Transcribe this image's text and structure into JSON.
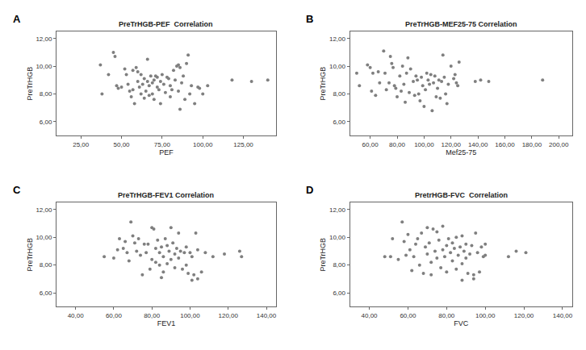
{
  "chart_data": [
    {
      "type": "scatter",
      "panel": "A",
      "title": "PreTrHGB-PEF  Correlation",
      "x_label": "PEF",
      "y_label": "PreTrHGB",
      "color": "#7f7f7f",
      "marker": "circle",
      "grid": false,
      "x": [
        37,
        38,
        42,
        45,
        46,
        47,
        48,
        50,
        52,
        53,
        54,
        55,
        56,
        57,
        57,
        58,
        59,
        60,
        60,
        61,
        62,
        62,
        63,
        64,
        64,
        65,
        66,
        66,
        67,
        67,
        68,
        69,
        69,
        70,
        70,
        71,
        72,
        72,
        73,
        74,
        74,
        75,
        76,
        77,
        78,
        79,
        80,
        80,
        81,
        82,
        83,
        84,
        85,
        85,
        86,
        86,
        87,
        88,
        89,
        90,
        91,
        92,
        93,
        95,
        97,
        98,
        100,
        103,
        118,
        130,
        140
      ],
      "y": [
        10.1,
        8.0,
        9.4,
        11.0,
        10.7,
        8.6,
        8.4,
        8.5,
        9.8,
        9.4,
        8.7,
        8.2,
        7.8,
        9.7,
        8.3,
        7.3,
        9.9,
        9.6,
        8.9,
        8.5,
        9.4,
        8.0,
        8.7,
        7.7,
        9.1,
        8.2,
        10.5,
        8.9,
        8.6,
        7.9,
        9.3,
        8.8,
        8.0,
        9.0,
        7.6,
        9.3,
        8.5,
        9.2,
        8.3,
        8.9,
        7.3,
        9.4,
        8.7,
        8.1,
        9.2,
        9.1,
        8.6,
        7.8,
        8.3,
        9.7,
        9.0,
        10.0,
        10.1,
        8.2,
        9.9,
        6.9,
        8.8,
        9.3,
        7.6,
        10.2,
        10.8,
        8.0,
        8.6,
        7.3,
        8.5,
        8.4,
        8.0,
        8.6,
        9.0,
        8.9,
        9.0
      ],
      "xlim": [
        10,
        145
      ],
      "xticks": [
        {
          "value": 25,
          "label": "25,00"
        },
        {
          "value": 50,
          "label": "50,00"
        },
        {
          "value": 75,
          "label": "75,00"
        },
        {
          "value": 100,
          "label": "100,00"
        },
        {
          "value": 125,
          "label": "125,00"
        }
      ],
      "ylim": [
        5.0,
        12.5
      ],
      "yticks": [
        {
          "value": 6,
          "label": "6,00"
        },
        {
          "value": 8,
          "label": "8,00"
        },
        {
          "value": 10,
          "label": "10,00"
        },
        {
          "value": 12,
          "label": "12,00"
        }
      ]
    },
    {
      "type": "scatter",
      "panel": "B",
      "title": "PreTrHGB-MEF25-75 Correlation",
      "x_label": "Mef25-75",
      "y_label": "PreTrHGB",
      "color": "#7f7f7f",
      "marker": "circle",
      "grid": false,
      "x": [
        50,
        52,
        58,
        60,
        61,
        62,
        64,
        66,
        67,
        70,
        71,
        72,
        74,
        75,
        76,
        77,
        78,
        79,
        80,
        82,
        83,
        84,
        85,
        86,
        87,
        88,
        89,
        90,
        92,
        93,
        94,
        95,
        96,
        97,
        98,
        99,
        100,
        101,
        102,
        103,
        104,
        105,
        106,
        107,
        108,
        109,
        110,
        111,
        112,
        113,
        114,
        115,
        116,
        117,
        118,
        120,
        122,
        123,
        124,
        125,
        126,
        138,
        142,
        148,
        188
      ],
      "y": [
        9.5,
        8.6,
        10.1,
        9.9,
        8.2,
        9.5,
        7.9,
        9.6,
        8.8,
        11.1,
        9.5,
        8.3,
        8.8,
        10.7,
        10.2,
        9.9,
        8.6,
        8.4,
        7.8,
        9.3,
        8.2,
        10.0,
        8.7,
        7.4,
        9.5,
        10.6,
        8.1,
        9.8,
        8.9,
        7.9,
        9.3,
        9.0,
        8.0,
        7.5,
        9.2,
        8.6,
        7.1,
        8.3,
        9.5,
        9.0,
        8.7,
        9.4,
        6.8,
        8.8,
        9.3,
        7.8,
        8.4,
        9.0,
        7.7,
        8.9,
        10.8,
        9.2,
        8.0,
        7.3,
        8.7,
        10.0,
        9.1,
        9.4,
        8.8,
        8.6,
        10.3,
        8.9,
        9.0,
        8.9,
        9.0
      ],
      "xlim": [
        45,
        210
      ],
      "xticks": [
        {
          "value": 60,
          "label": "60,00"
        },
        {
          "value": 80,
          "label": "80,00"
        },
        {
          "value": 100,
          "label": "100,00"
        },
        {
          "value": 120,
          "label": "120,00"
        },
        {
          "value": 140,
          "label": "140,00"
        },
        {
          "value": 160,
          "label": "160,00"
        },
        {
          "value": 180,
          "label": "180,00"
        },
        {
          "value": 200,
          "label": "200,00"
        }
      ],
      "ylim": [
        5.0,
        12.5
      ],
      "yticks": [
        {
          "value": 6,
          "label": "6,00"
        },
        {
          "value": 8,
          "label": "8,00"
        },
        {
          "value": 10,
          "label": "10,00"
        },
        {
          "value": 12,
          "label": "12,00"
        }
      ]
    },
    {
      "type": "scatter",
      "panel": "C",
      "title": "PreTrHGB-FEV1 Correlation",
      "x_label": "FEV1",
      "y_label": "PreTrHGB",
      "color": "#7f7f7f",
      "marker": "circle",
      "grid": false,
      "x": [
        55,
        60,
        62,
        63,
        65,
        66,
        67,
        68,
        69,
        70,
        71,
        72,
        73,
        74,
        75,
        76,
        77,
        78,
        79,
        80,
        80,
        81,
        82,
        82,
        83,
        84,
        84,
        85,
        85,
        86,
        86,
        87,
        88,
        88,
        89,
        90,
        90,
        91,
        92,
        92,
        93,
        94,
        94,
        95,
        96,
        97,
        98,
        98,
        99,
        100,
        101,
        101,
        102,
        103,
        104,
        104,
        106,
        108,
        112,
        118,
        126,
        127
      ],
      "y": [
        8.6,
        8.5,
        9.1,
        9.9,
        9.2,
        9.7,
        8.9,
        8.3,
        11.1,
        10.1,
        9.6,
        9.0,
        9.9,
        8.7,
        7.3,
        9.5,
        8.9,
        9.5,
        7.7,
        10.7,
        8.4,
        10.6,
        9.2,
        8.2,
        9.8,
        8.9,
        8.0,
        9.3,
        7.1,
        8.6,
        7.5,
        9.9,
        9.4,
        8.1,
        9.0,
        10.7,
        8.4,
        9.6,
        8.8,
        7.8,
        9.2,
        10.3,
        8.5,
        9.0,
        7.7,
        8.9,
        9.3,
        8.0,
        7.4,
        8.9,
        8.6,
        6.9,
        7.3,
        10.3,
        9.1,
        7.0,
        7.5,
        8.9,
        8.6,
        8.8,
        9.0,
        8.6
      ],
      "xlim": [
        30,
        145
      ],
      "xticks": [
        {
          "value": 40,
          "label": "40,00"
        },
        {
          "value": 60,
          "label": "60,00"
        },
        {
          "value": 80,
          "label": "80,00"
        },
        {
          "value": 100,
          "label": "100,00"
        },
        {
          "value": 120,
          "label": "120,00"
        },
        {
          "value": 140,
          "label": "140,00"
        }
      ],
      "ylim": [
        5.0,
        12.5
      ],
      "yticks": [
        {
          "value": 6,
          "label": "6,00"
        },
        {
          "value": 8,
          "label": "8,00"
        },
        {
          "value": 10,
          "label": "10,00"
        },
        {
          "value": 12,
          "label": "12,00"
        }
      ]
    },
    {
      "type": "scatter",
      "panel": "D",
      "title": "PretrHGB-FVC  Correlation",
      "x_label": "FVC",
      "y_label": "PreTrHGB",
      "color": "#7f7f7f",
      "marker": "circle",
      "grid": false,
      "x": [
        48,
        51,
        52,
        55,
        57,
        58,
        59,
        60,
        61,
        62,
        63,
        64,
        65,
        66,
        67,
        68,
        69,
        70,
        70,
        71,
        72,
        72,
        73,
        74,
        75,
        75,
        76,
        77,
        78,
        78,
        79,
        80,
        80,
        81,
        82,
        83,
        83,
        84,
        85,
        85,
        86,
        87,
        88,
        88,
        88,
        89,
        90,
        90,
        91,
        92,
        93,
        94,
        94,
        95,
        96,
        97,
        98,
        99,
        100,
        100,
        112,
        116,
        121
      ],
      "y": [
        8.6,
        8.6,
        9.9,
        8.4,
        11.1,
        9.7,
        8.7,
        10.2,
        9.1,
        7.6,
        8.6,
        9.5,
        9.9,
        8.0,
        10.3,
        7.4,
        9.3,
        10.7,
        8.8,
        9.6,
        8.2,
        7.3,
        10.6,
        9.0,
        8.5,
        10.4,
        9.8,
        7.8,
        9.1,
        10.8,
        8.6,
        9.4,
        7.5,
        9.9,
        8.9,
        8.3,
        9.6,
        9.2,
        7.7,
        10.0,
        8.7,
        9.3,
        8.1,
        10.1,
        6.9,
        9.0,
        8.5,
        9.5,
        7.4,
        8.8,
        9.4,
        7.0,
        7.3,
        10.3,
        8.9,
        7.5,
        9.3,
        8.6,
        8.7,
        9.5,
        8.6,
        9.0,
        8.9
      ],
      "xlim": [
        30,
        145
      ],
      "xticks": [
        {
          "value": 40,
          "label": "40,00"
        },
        {
          "value": 60,
          "label": "60,00"
        },
        {
          "value": 80,
          "label": "80,00"
        },
        {
          "value": 100,
          "label": "100,00"
        },
        {
          "value": 120,
          "label": "120,00"
        },
        {
          "value": 140,
          "label": "140,00"
        }
      ],
      "ylim": [
        5.0,
        12.5
      ],
      "yticks": [
        {
          "value": 6,
          "label": "6,00"
        },
        {
          "value": 8,
          "label": "8,00"
        },
        {
          "value": 10,
          "label": "10,00"
        },
        {
          "value": 12,
          "label": "12,00"
        }
      ]
    }
  ]
}
